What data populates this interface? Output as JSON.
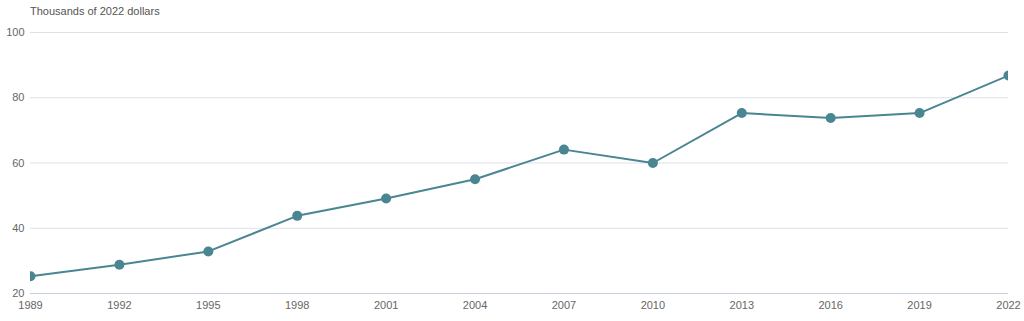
{
  "chart_data": {
    "type": "line",
    "subtitle": "Thousands of 2022 dollars",
    "x": [
      1989,
      1992,
      1995,
      1998,
      2001,
      2004,
      2007,
      2010,
      2013,
      2016,
      2019,
      2022
    ],
    "values": [
      25.3,
      28.8,
      32.9,
      43.8,
      49.1,
      55.0,
      64.1,
      60.0,
      75.3,
      73.8,
      75.3,
      86.8
    ],
    "color": "#4a8592",
    "marker": "circle",
    "xlim": [
      1989,
      2022
    ],
    "ylim": [
      20,
      100
    ],
    "xticks": [
      1989,
      1992,
      1995,
      1998,
      2001,
      2004,
      2007,
      2010,
      2013,
      2016,
      2019,
      2022
    ],
    "yticks": [
      20,
      40,
      60,
      80,
      100
    ],
    "grid": true
  }
}
